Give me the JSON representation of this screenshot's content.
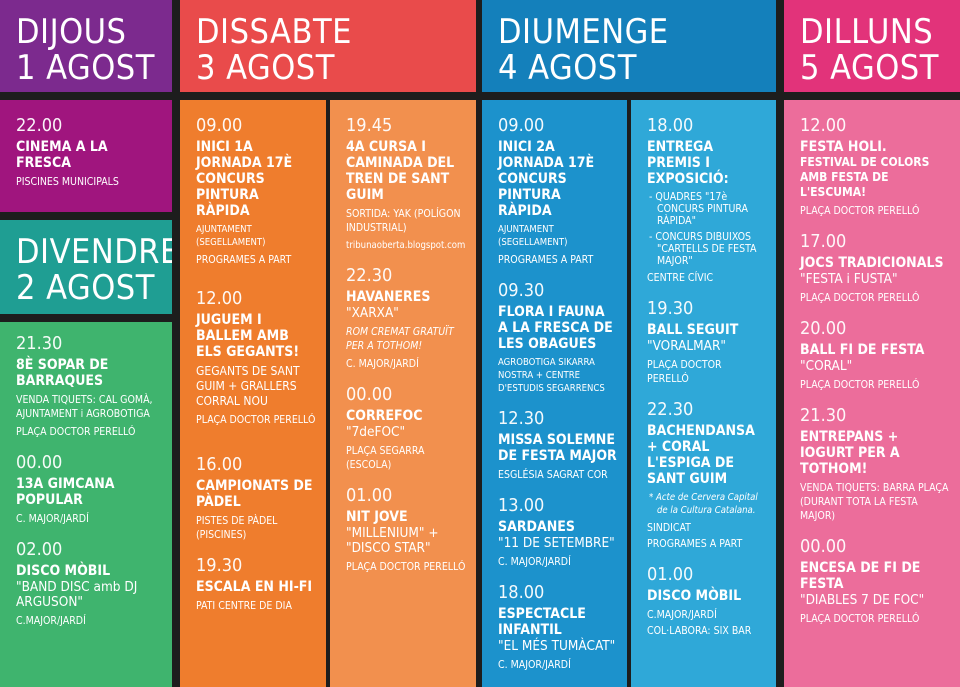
{
  "colors": {
    "purple": "#7c2a8e",
    "magenta": "#a0157e",
    "teal": "#1f9e93",
    "green": "#3fb46e",
    "red": "#e94b4b",
    "orange": "#ef7d2d",
    "orange_light": "#f2904e",
    "blue": "#1480bb",
    "blue_mid": "#1c92cc",
    "cyan": "#2fa8d8",
    "pink": "#e2337a",
    "pink_light": "#ec6d9b"
  },
  "headers": {
    "dijous": {
      "day": "DIJOUS",
      "date": "1 AGOST"
    },
    "divendres": {
      "day": "DIVENDRES",
      "date": "2 AGOST"
    },
    "dissabte": {
      "day": "DISSABTE",
      "date": "3 AGOST"
    },
    "diumenge": {
      "day": "DIUMENGE",
      "date": "4 AGOST"
    },
    "dilluns": {
      "day": "DILLUNS",
      "date": "5 AGOST"
    }
  },
  "dijous": {
    "e1": {
      "time": "22.00",
      "title": "CINEMA A LA FRESCA",
      "det": "PISCINES MUNICIPALS"
    }
  },
  "divendres": {
    "e1": {
      "time": "21.30",
      "title": "8è SOPAR DE BARRAQUES",
      "det1": "VENDA TIQUETS: CAL GOMÀ, AJUNTAMENT i AGROBOTIGA",
      "det2": "PLAÇA DOCTOR PERELLÓ"
    },
    "e2": {
      "time": "00.00",
      "title": "13a GIMCANA POPULAR",
      "det": "C. MAJOR/JARDÍ"
    },
    "e3": {
      "time": "02.00",
      "title": "DISCO MÒBIL",
      "sub": "\"BAND DISC amb DJ ARGUSON\"",
      "det": "C.MAJOR/JARDÍ"
    }
  },
  "dissabte_a": {
    "e1": {
      "time": "09.00",
      "title": "INICI 1a JORNADA 17è CONCURS PINTURA RÀPIDA",
      "det1": "AJUNTAMENT (SEGELLAMENT)",
      "det2": "PROGRAMES A PART"
    },
    "e2": {
      "time": "12.00",
      "title": "JUGUEM i BALLEM AMB ELS GEGANTS!",
      "det1": "GEGANTS DE SANT GUIM + GRALLERS CORRAL NOU",
      "det2": "PLAÇA DOCTOR PERELLÓ"
    },
    "e3": {
      "time": "16.00",
      "title": "CAMPIONATS DE PÀDEL",
      "det": "PISTES DE PÀDEL (PISCINES)"
    },
    "e4": {
      "time": "19.30",
      "title": "ESCALA EN HI-FI",
      "det": "PATI CENTRE DE DIA"
    }
  },
  "dissabte_b": {
    "e1": {
      "time": "19.45",
      "title": "4a CURSA i CAMINADA DEL TREN DE SANT GUIM",
      "det1": "SORTIDA: YAK (POLÍGON INDUSTRIAL)",
      "det2": "tribunaoberta.blogspot.com"
    },
    "e2": {
      "time": "22.30",
      "title": "HAVANERES",
      "sub": "\"XARXA\"",
      "ital": "ROM CREMAT GRATUÏT PER A TOTHOM!",
      "det": "C. MAJOR/JARDÍ"
    },
    "e3": {
      "time": "00.00",
      "title": "CORREFOC",
      "sub": "\"7deFOC\"",
      "det": "PLAÇA SEGARRA (ESCOLA)"
    },
    "e4": {
      "time": "01.00",
      "title": "NIT JOVE",
      "sub": "\"MILLENIUM\" + \"DISCO STAR\"",
      "det": "PLAÇA DOCTOR PERELLÓ"
    }
  },
  "diumenge_a": {
    "e1": {
      "time": "09.00",
      "title": "INICI 2a JORNADA 17è CONCURS PINTURA RÀPIDA",
      "det1": "AJUNTAMENT (SEGELLAMENT)",
      "det2": "PROGRAMES A PART"
    },
    "e2": {
      "time": "09.30",
      "title": "FLORA i FAUNA A LA FRESCA DE LES OBAGUES",
      "det": "AGROBOTIGA SIKARRA NOSTRA + CENTRE D'ESTUDIS SEGARRENCS"
    },
    "e3": {
      "time": "12.30",
      "title": "MISSA SOLEMNE DE FESTA MAJOR",
      "det": "ESGLÉSIA SAGRAT COR"
    },
    "e4": {
      "time": "13.00",
      "title": "SARDANES",
      "sub": "\"11 DE SETEMBRE\"",
      "det": "C. MAJOR/JARDÍ"
    },
    "e5": {
      "time": "18.00",
      "title": "ESPECTACLE INFANTIL",
      "sub": "\"EL MÉS TUMÀCAT\"",
      "det": "C. MAJOR/JARDÍ"
    }
  },
  "diumenge_b": {
    "e1": {
      "time": "18.00",
      "title": "ENTREGA PREMIS i EXPOSICIÓ:",
      "b1": "- QUADRES \"17è CONCURS PINTURA RÀPIDA\"",
      "b2": "- CONCURS DIBUIXOS \"CARTELLS DE FESTA MAJOR\"",
      "det": "CENTRE CÍVIC"
    },
    "e2": {
      "time": "19.30",
      "title": "BALL SEGUIT",
      "sub": "\"VORALMAR\"",
      "det": "PLAÇA DOCTOR PERELLÓ"
    },
    "e3": {
      "time": "22.30",
      "title": "BACHENDANSA + CORAL L'ESPIGA DE SANT GUIM",
      "note": "* Acte de Cervera Capital de la Cultura Catalana.",
      "det1": "SINDICAT",
      "det2": "PROGRAMES A PART"
    },
    "e4": {
      "time": "01.00",
      "title": "DISCO MÒBIL",
      "det1": "C.MAJOR/JARDÍ",
      "det2": "COL·LABORA: SIX BAR"
    }
  },
  "dilluns": {
    "e1": {
      "time": "12.00",
      "title": "FESTA HOLI.",
      "title2": "FESTIVAL DE COLORS AMB FESTA DE L'ESCUMA!",
      "det": "PLAÇA DOCTOR PERELLÓ"
    },
    "e2": {
      "time": "17.00",
      "title": "JOCS TRADICIONALS",
      "sub": "\"FESTA i FUSTA\"",
      "det": "PLAÇA DOCTOR PERELLÓ"
    },
    "e3": {
      "time": "20.00",
      "title": "BALL FI DE FESTA",
      "sub": "\"CORAL\"",
      "det": "PLAÇA DOCTOR PERELLÓ"
    },
    "e4": {
      "time": "21.30",
      "title": "ENTREPANS + IOGURT PER A TOTHOM!",
      "det": "VENDA TIQUETS: BARRA PLAÇA (DURANT TOTA LA FESTA MAJOR)"
    },
    "e5": {
      "time": "00.00",
      "title": "ENCESA DE FI DE FESTA",
      "sub": "\"DIABLES 7 DE FOC\"",
      "det": "PLAÇA DOCTOR PERELLÓ"
    }
  }
}
